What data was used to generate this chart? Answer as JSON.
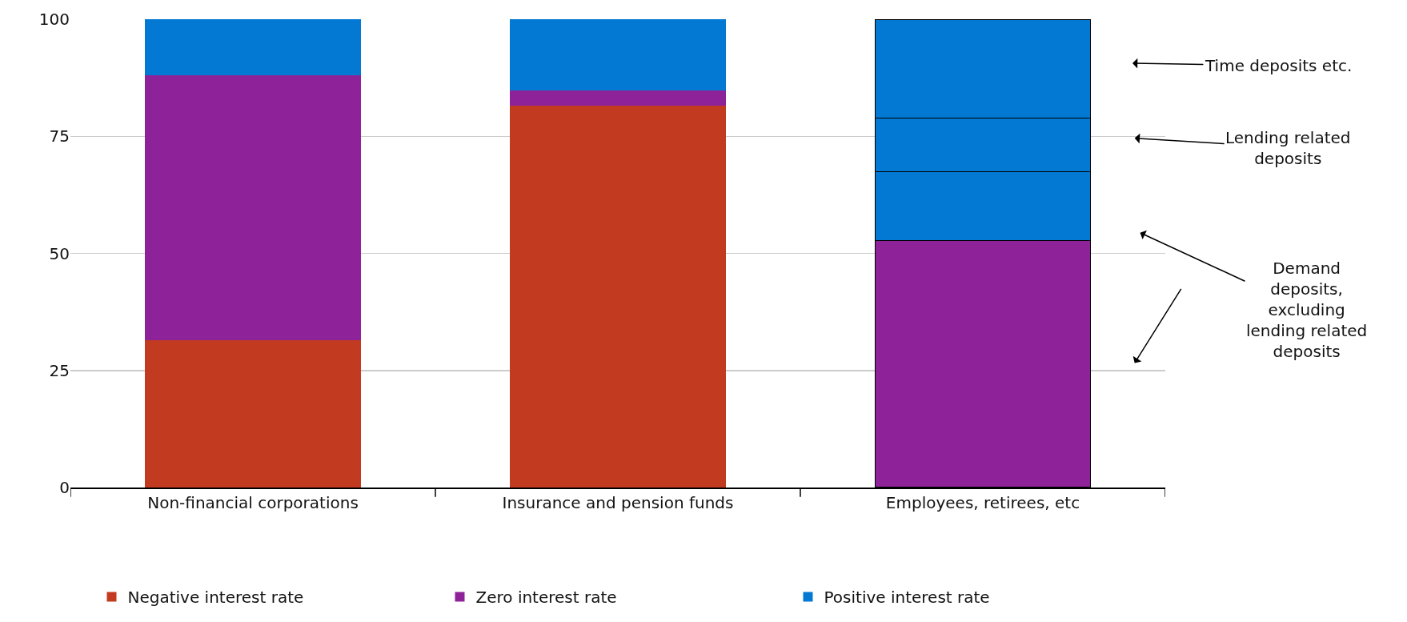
{
  "chart_data": {
    "type": "bar",
    "stacked": true,
    "categories": [
      "Non-financial corporations",
      "Insurance and pension funds",
      "Employees, retirees, etc"
    ],
    "series": [
      {
        "name": "Negative interest rate",
        "color": "#c23b21",
        "values": [
          31.5,
          81.6,
          0
        ]
      },
      {
        "name": "Zero interest rate",
        "color": "#8e2399",
        "values": [
          56.5,
          3.2,
          52.7
        ]
      },
      {
        "name": "Positive interest rate",
        "color": "#0479d3",
        "values": [
          12,
          15.2,
          14.7
        ]
      },
      {
        "color": "#0479d3",
        "values": [
          null,
          null,
          11.5
        ]
      },
      {
        "color": "#0479d3",
        "values": [
          null,
          null,
          21.1
        ]
      }
    ],
    "ylim": [
      0,
      100
    ],
    "yticks": [
      0,
      25,
      50,
      75,
      100
    ],
    "grid": "y",
    "legend": "bottom",
    "annotations": [
      "Time deposits etc.",
      "Lending related\ndeposits",
      "Demand\ndeposits,\nexcluding\nlending related\ndeposits"
    ]
  }
}
